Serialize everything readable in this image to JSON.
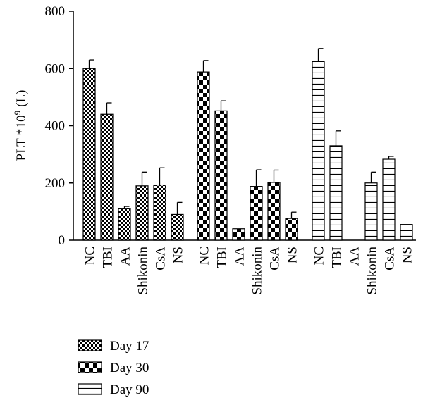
{
  "chart_data": {
    "type": "bar",
    "ylabel": "PLT *10",
    "ylabel_sup": "9",
    "ylabel_unit": "(L)",
    "ylim": [
      0,
      800
    ],
    "yticks": [
      0,
      200,
      400,
      600,
      800
    ],
    "groups": [
      {
        "name": "Day 17",
        "pattern": "small-checker",
        "categories": [
          "NC",
          "TBI",
          "AA",
          "Shikonin",
          "CsA",
          "NS"
        ],
        "values": [
          600,
          440,
          110,
          190,
          193,
          90
        ],
        "errors": [
          30,
          40,
          8,
          48,
          60,
          42
        ]
      },
      {
        "name": "Day 30",
        "pattern": "large-checker",
        "categories": [
          "NC",
          "TBI",
          "AA",
          "Shikonin",
          "CsA",
          "NS"
        ],
        "values": [
          588,
          452,
          40,
          188,
          202,
          76
        ],
        "errors": [
          40,
          35,
          0,
          58,
          43,
          22
        ]
      },
      {
        "name": "Day 90",
        "pattern": "horizontal-lines",
        "categories": [
          "NC",
          "TBI",
          "AA",
          "Shikonin",
          "CsA",
          "NS"
        ],
        "values": [
          625,
          330,
          null,
          200,
          283,
          55
        ],
        "errors": [
          45,
          52,
          null,
          38,
          10,
          0
        ]
      }
    ],
    "legend": [
      {
        "label": "Day 17",
        "pattern": "small-checker"
      },
      {
        "label": "Day 30",
        "pattern": "large-checker"
      },
      {
        "label": "Day 90",
        "pattern": "horizontal-lines"
      }
    ],
    "legend_position": "bottom-left",
    "grid": false
  }
}
